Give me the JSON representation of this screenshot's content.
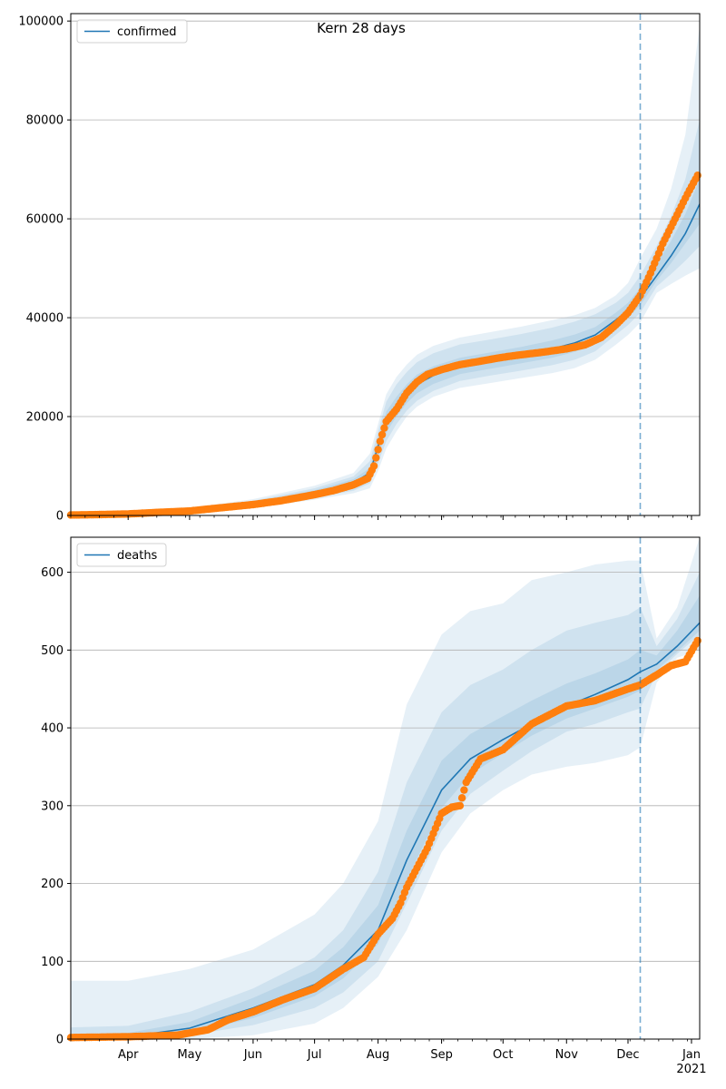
{
  "figure": {
    "title": "Kern 28 days"
  },
  "colors": {
    "line": "#1f77b4",
    "points": "#ff7f0e",
    "band": "#1f77b4",
    "cutoff": "#1f77b4",
    "grid": "#b0b0b0"
  },
  "chart_data": [
    {
      "type": "line",
      "name": "confirmed-panel",
      "legend": "confirmed",
      "legend_position": "top-left",
      "x_dates": [
        "2020-03-04",
        "2021-01-05"
      ],
      "x_ticks": [
        {
          "date": "2020-04-01",
          "label": "Apr"
        },
        {
          "date": "2020-05-01",
          "label": "May"
        },
        {
          "date": "2020-06-01",
          "label": "Jun"
        },
        {
          "date": "2020-07-01",
          "label": "Jul"
        },
        {
          "date": "2020-08-01",
          "label": "Aug"
        },
        {
          "date": "2020-09-01",
          "label": "Sep"
        },
        {
          "date": "2020-10-01",
          "label": "Oct"
        },
        {
          "date": "2020-11-01",
          "label": "Nov"
        },
        {
          "date": "2020-12-01",
          "label": "Dec"
        },
        {
          "date": "2021-01-01",
          "label": "Jan",
          "sublabel": "2021"
        }
      ],
      "ylim": [
        0,
        101500
      ],
      "y_ticks": [
        0,
        20000,
        40000,
        60000,
        80000,
        100000
      ],
      "grid": "horizontal",
      "forecast_start": "2020-12-07",
      "model": {
        "dates": [
          "2020-03-04",
          "2020-04-01",
          "2020-05-01",
          "2020-06-01",
          "2020-07-01",
          "2020-07-20",
          "2020-07-28",
          "2020-08-01",
          "2020-08-05",
          "2020-08-10",
          "2020-08-15",
          "2020-08-20",
          "2020-08-28",
          "2020-09-10",
          "2020-09-25",
          "2020-10-10",
          "2020-10-25",
          "2020-11-05",
          "2020-11-15",
          "2020-11-25",
          "2020-12-01",
          "2020-12-07",
          "2020-12-15",
          "2020-12-22",
          "2020-12-29",
          "2021-01-05"
        ],
        "median": [
          50,
          150,
          800,
          2300,
          4500,
          6600,
          8600,
          14000,
          19000,
          22000,
          24500,
          26500,
          28300,
          30200,
          31400,
          32500,
          33700,
          34900,
          36500,
          39500,
          41500,
          44000,
          48500,
          52500,
          57000,
          63000
        ],
        "bands": [
          {
            "lower": [
              0,
              0,
              300,
              1500,
              3200,
              4500,
              5500,
              9000,
              13500,
              17000,
              20000,
              22000,
              24000,
              25800,
              26800,
              27800,
              28800,
              29800,
              31500,
              34500,
              36500,
              39000,
              45000,
              46800,
              48500,
              50000
            ],
            "upper": [
              400,
              500,
              1500,
              3300,
              6000,
              8600,
              12500,
              18500,
              24500,
              28000,
              30500,
              32500,
              34300,
              36000,
              37100,
              38200,
              39500,
              40500,
              42000,
              44500,
              47000,
              52000,
              58000,
              66000,
              77000,
              99000
            ]
          },
          {
            "lower": [
              0,
              50,
              450,
              1800,
              3600,
              5000,
              6500,
              10500,
              15000,
              18500,
              21200,
              23200,
              25200,
              27200,
              28300,
              29300,
              30400,
              31500,
              33200,
              36500,
              38500,
              41000,
              46300,
              48800,
              51500,
              54500
            ],
            "upper": [
              300,
              350,
              1250,
              2950,
              5500,
              7900,
              11000,
              17000,
              23000,
              26500,
              29000,
              31000,
              32800,
              34600,
              35600,
              36700,
              38000,
              39200,
              40700,
              43000,
              45000,
              48500,
              54500,
              60500,
              68000,
              80000
            ]
          },
          {
            "lower": [
              10,
              80,
              560,
              1980,
              3950,
              5650,
              7350,
              12000,
              16800,
              20000,
              22700,
              24700,
              26600,
              28600,
              29700,
              30800,
              31900,
              33100,
              34800,
              37900,
              40000,
              42500,
              47500,
              51000,
              55000,
              59000
            ],
            "upper": [
              150,
              250,
              1050,
              2650,
              5100,
              7350,
              9600,
              15500,
              21000,
              24000,
              26500,
              28500,
              30200,
              31900,
              33000,
              34100,
              35400,
              36600,
              38100,
              41000,
              43000,
              46000,
              51000,
              55500,
              61000,
              68000
            ]
          }
        ]
      },
      "observed": {
        "dates": [
          "2020-03-04",
          "2020-03-15",
          "2020-04-01",
          "2020-04-15",
          "2020-05-01",
          "2020-05-15",
          "2020-06-01",
          "2020-06-15",
          "2020-07-01",
          "2020-07-10",
          "2020-07-20",
          "2020-07-27",
          "2020-07-30",
          "2020-08-02",
          "2020-08-05",
          "2020-08-10",
          "2020-08-15",
          "2020-08-20",
          "2020-08-25",
          "2020-09-01",
          "2020-09-10",
          "2020-09-20",
          "2020-10-01",
          "2020-10-10",
          "2020-10-20",
          "2020-11-01",
          "2020-11-10",
          "2020-11-18",
          "2020-11-25",
          "2020-12-01",
          "2020-12-07",
          "2020-12-12",
          "2020-12-18",
          "2020-12-24",
          "2020-12-30",
          "2021-01-04"
        ],
        "values": [
          100,
          150,
          300,
          600,
          900,
          1500,
          2200,
          3000,
          4200,
          5000,
          6200,
          7500,
          10000,
          15000,
          19000,
          21500,
          24800,
          27000,
          28500,
          29500,
          30500,
          31200,
          32000,
          32500,
          33000,
          33700,
          34500,
          36000,
          38500,
          41000,
          44500,
          49000,
          55000,
          60000,
          65000,
          68800
        ]
      }
    },
    {
      "type": "line",
      "name": "deaths-panel",
      "legend": "deaths",
      "legend_position": "top-left",
      "x_dates": [
        "2020-03-04",
        "2021-01-05"
      ],
      "x_ticks": [
        {
          "date": "2020-04-01",
          "label": "Apr"
        },
        {
          "date": "2020-05-01",
          "label": "May"
        },
        {
          "date": "2020-06-01",
          "label": "Jun"
        },
        {
          "date": "2020-07-01",
          "label": "Jul"
        },
        {
          "date": "2020-08-01",
          "label": "Aug"
        },
        {
          "date": "2020-09-01",
          "label": "Sep"
        },
        {
          "date": "2020-10-01",
          "label": "Oct"
        },
        {
          "date": "2020-11-01",
          "label": "Nov"
        },
        {
          "date": "2020-12-01",
          "label": "Dec"
        },
        {
          "date": "2021-01-01",
          "label": "Jan",
          "sublabel": "2021"
        }
      ],
      "ylim": [
        0,
        645
      ],
      "y_ticks": [
        0,
        100,
        200,
        300,
        400,
        500,
        600
      ],
      "grid": "horizontal",
      "forecast_start": "2020-12-07",
      "model": {
        "dates": [
          "2020-03-04",
          "2020-04-01",
          "2020-05-01",
          "2020-06-01",
          "2020-07-01",
          "2020-07-15",
          "2020-08-01",
          "2020-08-15",
          "2020-09-01",
          "2020-09-15",
          "2020-10-01",
          "2020-10-15",
          "2020-11-01",
          "2020-11-15",
          "2020-12-01",
          "2020-12-07",
          "2020-12-15",
          "2020-12-25",
          "2021-01-05"
        ],
        "median": [
          2,
          3,
          14,
          40,
          70,
          95,
          140,
          230,
          320,
          360,
          385,
          405,
          428,
          443,
          462,
          472,
          482,
          505,
          535
        ],
        "bands": [
          {
            "lower": [
              0,
              0,
              0,
              5,
              20,
              40,
              80,
              140,
              240,
              290,
              320,
              340,
              350,
              355,
              365,
              375,
              458,
              490,
              500
            ],
            "upper": [
              75,
              75,
              90,
              115,
              160,
              200,
              280,
              430,
              520,
              550,
              560,
              590,
              600,
              610,
              615,
              615,
              515,
              555,
              645
            ]
          },
          {
            "lower": [
              0,
              0,
              5,
              18,
              40,
              60,
              100,
              175,
              268,
              315,
              345,
              370,
              395,
              405,
              420,
              425,
              470,
              495,
              520
            ],
            "upper": [
              15,
              17,
              35,
              65,
              105,
              140,
              215,
              330,
              420,
              455,
              475,
              500,
              525,
              535,
              545,
              555,
              505,
              540,
              600
            ]
          },
          {
            "lower": [
              0,
              1,
              8,
              27,
              55,
              78,
              122,
              205,
              297,
              340,
              367,
              390,
              412,
              425,
              440,
              448,
              474,
              498,
              525
            ],
            "upper": [
              6,
              8,
              22,
              53,
              88,
              118,
              172,
              268,
              358,
              392,
              415,
              435,
              457,
              470,
              488,
              500,
              493,
              525,
              570
            ]
          }
        ]
      },
      "observed": {
        "dates": [
          "2020-03-04",
          "2020-04-01",
          "2020-04-25",
          "2020-05-10",
          "2020-05-20",
          "2020-06-01",
          "2020-06-15",
          "2020-07-01",
          "2020-07-15",
          "2020-07-25",
          "2020-08-01",
          "2020-08-08",
          "2020-08-12",
          "2020-08-15",
          "2020-08-20",
          "2020-08-25",
          "2020-09-01",
          "2020-09-06",
          "2020-09-10",
          "2020-09-13",
          "2020-09-20",
          "2020-10-01",
          "2020-10-15",
          "2020-11-01",
          "2020-11-15",
          "2020-12-01",
          "2020-12-07",
          "2020-12-15",
          "2020-12-22",
          "2020-12-29",
          "2021-01-04"
        ],
        "values": [
          2,
          3,
          5,
          12,
          25,
          35,
          50,
          65,
          90,
          105,
          135,
          155,
          175,
          195,
          220,
          245,
          290,
          298,
          300,
          330,
          360,
          372,
          405,
          428,
          435,
          450,
          455,
          468,
          480,
          485,
          512
        ]
      }
    }
  ]
}
